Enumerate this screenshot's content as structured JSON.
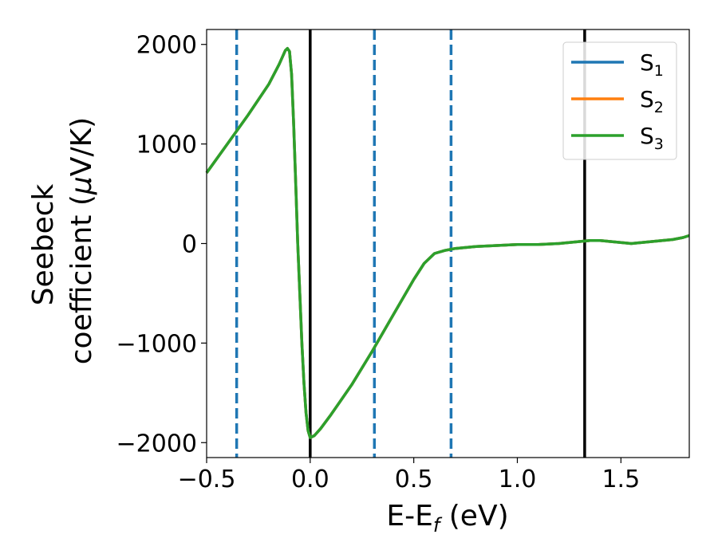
{
  "chart_data": {
    "type": "line",
    "title": "",
    "xlabel": "E-E",
    "xlabel_sub": "f",
    "xlabel_unit": " (eV)",
    "ylabel_line1": "Seebeck",
    "ylabel_line2": "coefficient  (",
    "ylabel_mu": "μ",
    "ylabel_unit": "V/K)",
    "xlim": [
      -0.5,
      1.83
    ],
    "ylim": [
      -2150,
      2150
    ],
    "xticks": [
      -0.5,
      0.0,
      0.5,
      1.0,
      1.5
    ],
    "xtick_labels": [
      "−0.5",
      "0.0",
      "0.5",
      "1.0",
      "1.5"
    ],
    "yticks": [
      -2000,
      -1000,
      0,
      1000,
      2000
    ],
    "ytick_labels": [
      "−2000",
      "−1000",
      "0",
      "1000",
      "2000"
    ],
    "grid": false,
    "legend_position": "top-right",
    "series": [
      {
        "name": "S",
        "sub": "1",
        "color": "#1f77b4",
        "x": [
          -0.5,
          -0.4,
          -0.3,
          -0.2,
          -0.15,
          -0.12,
          -0.11,
          -0.1,
          -0.09,
          -0.08,
          -0.07,
          -0.06,
          -0.05,
          -0.04,
          -0.03,
          -0.02,
          -0.01,
          0.0,
          0.02,
          0.05,
          0.1,
          0.2,
          0.3,
          0.4,
          0.5,
          0.55,
          0.6,
          0.65,
          0.7,
          0.8,
          0.9,
          1.0,
          1.1,
          1.2,
          1.3,
          1.35,
          1.4,
          1.45,
          1.5,
          1.55,
          1.6,
          1.65,
          1.7,
          1.75,
          1.8,
          1.83
        ],
        "y": [
          710,
          1000,
          1290,
          1600,
          1800,
          1940,
          1960,
          1930,
          1700,
          1200,
          600,
          0,
          -500,
          -1000,
          -1400,
          -1700,
          -1880,
          -1950,
          -1930,
          -1860,
          -1720,
          -1420,
          -1080,
          -720,
          -360,
          -200,
          -100,
          -70,
          -50,
          -30,
          -20,
          -10,
          -10,
          0,
          20,
          30,
          30,
          20,
          10,
          0,
          10,
          20,
          30,
          40,
          60,
          80
        ]
      },
      {
        "name": "S",
        "sub": "2",
        "color": "#ff7f0e",
        "x": [
          -0.5,
          -0.4,
          -0.3,
          -0.2,
          -0.15,
          -0.12,
          -0.11,
          -0.1,
          -0.09,
          -0.08,
          -0.07,
          -0.06,
          -0.05,
          -0.04,
          -0.03,
          -0.02,
          -0.01,
          0.0,
          0.02,
          0.05,
          0.1,
          0.2,
          0.3,
          0.4,
          0.5,
          0.55,
          0.6,
          0.65,
          0.7,
          0.8,
          0.9,
          1.0,
          1.1,
          1.2,
          1.3,
          1.35,
          1.4,
          1.45,
          1.5,
          1.55,
          1.6,
          1.65,
          1.7,
          1.75,
          1.8,
          1.83
        ],
        "y": [
          710,
          1000,
          1290,
          1600,
          1800,
          1940,
          1960,
          1930,
          1700,
          1200,
          600,
          0,
          -500,
          -1000,
          -1400,
          -1700,
          -1880,
          -1950,
          -1930,
          -1860,
          -1720,
          -1420,
          -1080,
          -720,
          -360,
          -200,
          -100,
          -70,
          -50,
          -30,
          -20,
          -10,
          -10,
          0,
          20,
          30,
          30,
          20,
          10,
          0,
          10,
          20,
          30,
          40,
          60,
          80
        ]
      },
      {
        "name": "S",
        "sub": "3",
        "color": "#2ca02c",
        "x": [
          -0.5,
          -0.4,
          -0.3,
          -0.2,
          -0.15,
          -0.12,
          -0.11,
          -0.1,
          -0.09,
          -0.08,
          -0.07,
          -0.06,
          -0.05,
          -0.04,
          -0.03,
          -0.02,
          -0.01,
          0.0,
          0.02,
          0.05,
          0.1,
          0.2,
          0.3,
          0.4,
          0.5,
          0.55,
          0.6,
          0.65,
          0.7,
          0.8,
          0.9,
          1.0,
          1.1,
          1.2,
          1.3,
          1.35,
          1.4,
          1.45,
          1.5,
          1.55,
          1.6,
          1.65,
          1.7,
          1.75,
          1.8,
          1.83
        ],
        "y": [
          710,
          1000,
          1290,
          1600,
          1800,
          1940,
          1960,
          1930,
          1700,
          1200,
          600,
          0,
          -500,
          -1000,
          -1400,
          -1700,
          -1880,
          -1950,
          -1930,
          -1860,
          -1720,
          -1420,
          -1080,
          -720,
          -360,
          -200,
          -100,
          -70,
          -50,
          -30,
          -20,
          -10,
          -10,
          0,
          20,
          30,
          30,
          20,
          10,
          0,
          10,
          20,
          30,
          40,
          60,
          80
        ]
      }
    ],
    "vlines": [
      {
        "x": -0.355,
        "style": "dashed",
        "color": "#1f77b4"
      },
      {
        "x": 0.0,
        "style": "solid",
        "color": "#000000"
      },
      {
        "x": 0.31,
        "style": "dashed",
        "color": "#1f77b4"
      },
      {
        "x": 0.68,
        "style": "dashed",
        "color": "#1f77b4"
      },
      {
        "x": 1.325,
        "style": "solid",
        "color": "#000000"
      }
    ]
  }
}
